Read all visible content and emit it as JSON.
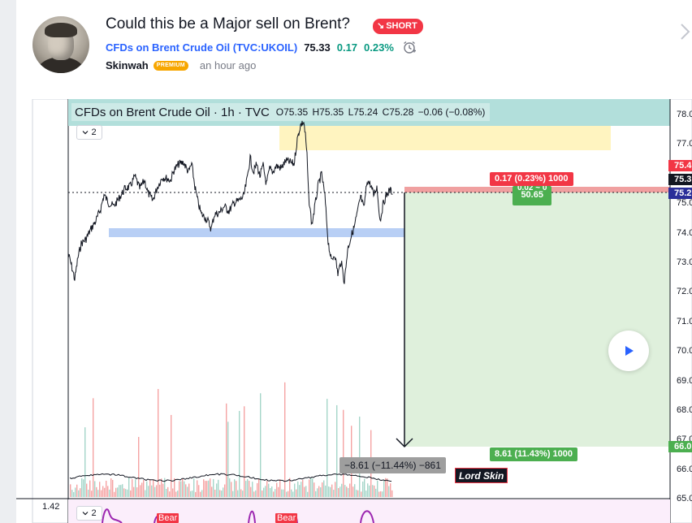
{
  "idea": {
    "title": "Could this be a Major sell on Brent?",
    "badge": "SHORT",
    "symbol_name": "CFDs on Brent Crude Oil",
    "symbol_code": "(TVC:UKOIL)",
    "price": "75.33",
    "change": "0.17",
    "change_pct": "0.23%",
    "author": "Skinwah",
    "author_badge": "PREMIUM",
    "published": "an hour ago"
  },
  "colors": {
    "short_red": "#f23645",
    "positive_green": "#089981",
    "link_blue": "#2962ff",
    "premium_orange": "#f7a600",
    "target_zone": "#dff0dc",
    "stop_zone": "#f0a0a0",
    "supply_zone": "#fff4c0",
    "support_zone": "#b8cff5"
  },
  "chart": {
    "legend_title": "CFDs on Brent Crude Oil · 1h · TVC",
    "ohlc": {
      "o": "O75.35",
      "h": "H75.35",
      "l": "L75.24",
      "c": "C75.28",
      "chg": "−0.06 (−0.08%)"
    },
    "indicator_count": "2",
    "indicator_count_lower": "2",
    "lower_scale_value": "1.42",
    "stop_label": "0.17 (0.23%) 1000",
    "entry_label_top": "0.02 ~ 0",
    "entry_label": "50.65",
    "target_label": "8.61 (11.43%) 1000",
    "measure_label": "−8.61 (−11.44%) −861",
    "signature": "Lord Skin",
    "bear_label": "Bear",
    "price_axis": [
      "78.0",
      "77.0",
      "75.0",
      "74.0",
      "73.0",
      "72.0",
      "71.0",
      "70.0",
      "69.0",
      "68.0",
      "67.0",
      "66.0",
      "65.0"
    ],
    "axis_pills": [
      {
        "text": "75.4",
        "color": "#f23645"
      },
      {
        "text": "75.3",
        "color": "#131722"
      },
      {
        "text": "75.2",
        "color": "#2a2e99"
      },
      {
        "text": "66.0",
        "color": "#4caf50"
      }
    ]
  }
}
